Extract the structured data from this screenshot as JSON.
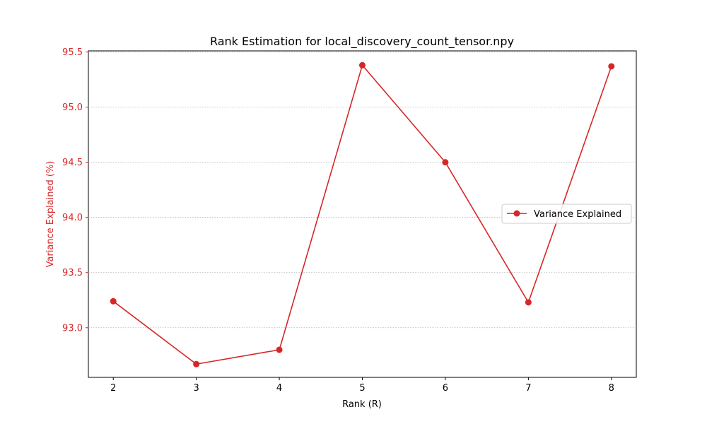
{
  "chart_data": {
    "type": "line",
    "title": "Rank Estimation for local_discovery_count_tensor.npy",
    "xlabel": "Rank (R)",
    "ylabel": "Variance Explained (%)",
    "x": [
      2,
      3,
      4,
      5,
      6,
      7,
      8
    ],
    "xticks": [
      "2",
      "3",
      "4",
      "5",
      "6",
      "7",
      "8"
    ],
    "xlim": [
      1.7,
      8.3
    ],
    "ylim": [
      92.55,
      95.51
    ],
    "yticks": [
      "93.0",
      "93.5",
      "94.0",
      "94.5",
      "95.0",
      "95.5"
    ],
    "ytick_values": [
      93.0,
      93.5,
      94.0,
      94.5,
      95.0,
      95.5
    ],
    "series": [
      {
        "name": "Variance Explained",
        "values": [
          93.24,
          92.67,
          92.8,
          95.38,
          94.5,
          93.23,
          95.37
        ],
        "color": "#d62728",
        "marker": "circle"
      }
    ],
    "grid": "y-dotted",
    "legend": "center-right",
    "ylabel_color": "#d62728"
  }
}
